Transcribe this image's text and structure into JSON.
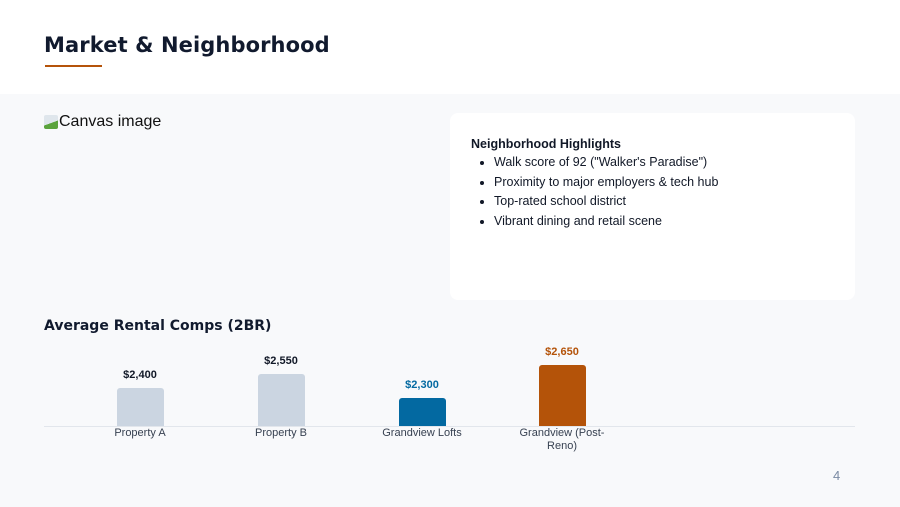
{
  "header": {
    "title": "Market & Neighborhood",
    "accent_color": "#b5530a"
  },
  "image_placeholder": {
    "alt": "Canvas image",
    "icon": "broken-image-icon"
  },
  "highlights": {
    "title": "Neighborhood Highlights",
    "items": [
      "Walk score of 92 (\"Walker's Paradise\")",
      "Proximity to major employers & tech hub",
      "Top-rated school district",
      "Vibrant dining and retail scene"
    ]
  },
  "chart_data": {
    "type": "bar",
    "title": "Average Rental Comps (2BR)",
    "categories": [
      "Property A",
      "Property B",
      "Grandview Lofts",
      "Grandview (Post-Reno)"
    ],
    "values": [
      2400,
      2550,
      2300,
      2650
    ],
    "value_labels": [
      "$2,400",
      "$2,550",
      "$2,300",
      "$2,650"
    ],
    "colors": [
      "#cbd5e1",
      "#cbd5e1",
      "#0369a1",
      "#b45309"
    ],
    "label_colors": [
      "#111827",
      "#111827",
      "#0369a1",
      "#b45309"
    ],
    "xlabel": "",
    "ylabel": "",
    "grid": false,
    "legend": "none"
  },
  "footer": {
    "page_number": "4"
  }
}
